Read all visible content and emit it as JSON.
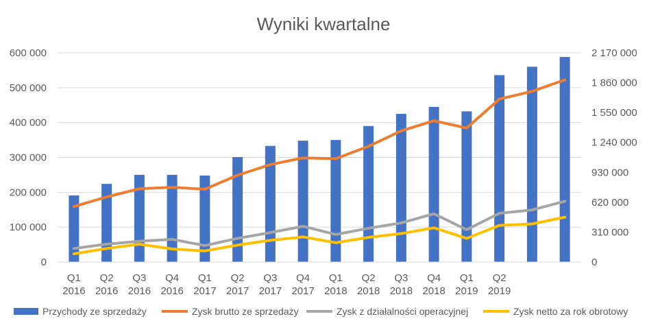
{
  "chart_data": {
    "type": "bar+line",
    "title": "Wyniki kwartalne",
    "categories": [
      {
        "q": "Q1",
        "y": "2016"
      },
      {
        "q": "Q2",
        "y": "2016"
      },
      {
        "q": "Q3",
        "y": "2016"
      },
      {
        "q": "Q4",
        "y": "2016"
      },
      {
        "q": "Q1",
        "y": "2017"
      },
      {
        "q": "Q2",
        "y": "2017"
      },
      {
        "q": "Q3",
        "y": "2017"
      },
      {
        "q": "Q4",
        "y": "2017"
      },
      {
        "q": "Q1",
        "y": "2018"
      },
      {
        "q": "Q2",
        "y": "2018"
      },
      {
        "q": "Q3",
        "y": "2018"
      },
      {
        "q": "Q4",
        "y": "2018"
      },
      {
        "q": "Q1",
        "y": "2019"
      },
      {
        "q": "Q2",
        "y": "2019"
      },
      {
        "q": "",
        "y": ""
      },
      {
        "q": "",
        "y": ""
      }
    ],
    "y_left": {
      "min": 0,
      "max": 600000,
      "ticks": [
        "0",
        "100 000",
        "200 000",
        "300 000",
        "400 000",
        "500 000",
        "600 000"
      ]
    },
    "y_right": {
      "min": 0,
      "max": 2170000,
      "ticks": [
        "0",
        "310 000",
        "620 000",
        "930 000",
        "1 240 000",
        "1 550 000",
        "1 860 000",
        "2 170 000"
      ]
    },
    "grid": true,
    "legend_position": "bottom",
    "series": [
      {
        "name": "Przychody ze sprzedaży",
        "type": "bar",
        "axis": "left",
        "color": "#4472C4",
        "values": [
          191000,
          224000,
          250000,
          250000,
          248000,
          301000,
          333000,
          348000,
          350000,
          390000,
          425000,
          445000,
          432000,
          536000,
          560000,
          588000
        ]
      },
      {
        "name": "Zysk brutto ze sprzedaży",
        "type": "line",
        "axis": "right",
        "color": "#ED7D31",
        "values": [
          575000,
          675000,
          760000,
          775000,
          755000,
          900000,
          1010000,
          1080000,
          1072000,
          1200000,
          1360000,
          1465000,
          1390000,
          1690000,
          1770000,
          1890000
        ]
      },
      {
        "name": "Zysk z działalności operacyjnej",
        "type": "line",
        "axis": "right",
        "color": "#A5A5A5",
        "values": [
          140000,
          185000,
          215000,
          235000,
          170000,
          245000,
          305000,
          370000,
          285000,
          350000,
          405000,
          500000,
          335000,
          505000,
          540000,
          630000
        ]
      },
      {
        "name": "Zysk netto za rok obrotowy",
        "type": "line",
        "axis": "right",
        "color": "#FFC000",
        "values": [
          85000,
          140000,
          185000,
          135000,
          115000,
          175000,
          225000,
          260000,
          200000,
          255000,
          295000,
          355000,
          245000,
          380000,
          395000,
          465000
        ]
      }
    ]
  }
}
